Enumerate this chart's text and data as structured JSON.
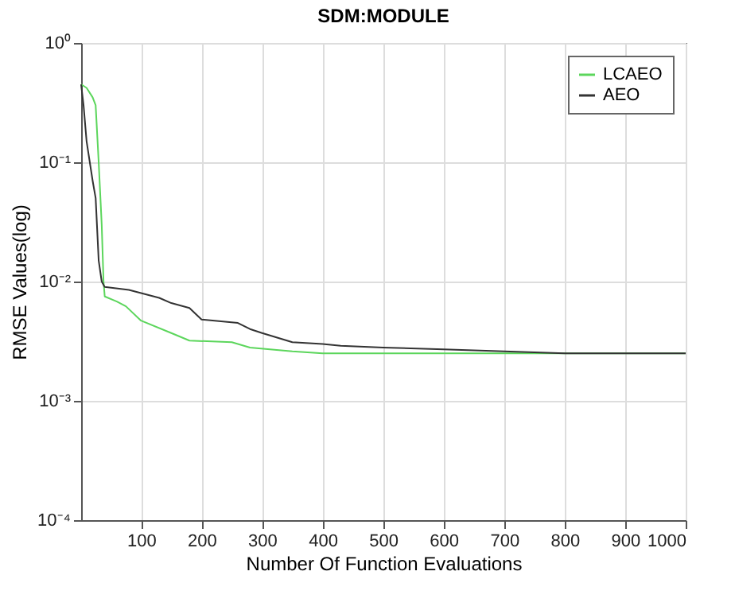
{
  "chart_data": {
    "type": "line",
    "title": "SDM:MODULE",
    "xlabel": "Number Of Function Evaluations",
    "ylabel": "RMSE Values(log)",
    "log": "y",
    "grid": true,
    "legend": "top right",
    "xlim": [
      1,
      1000
    ],
    "xticks": [
      100,
      200,
      300,
      400,
      500,
      600,
      700,
      800,
      900,
      1000
    ],
    "ylim": [
      0.0001,
      1
    ],
    "yticks": [
      {
        "value": 0.0001,
        "label": "10⁻⁴"
      },
      {
        "value": 0.001,
        "label": "10⁻³"
      },
      {
        "value": 0.01,
        "label": "10⁻²"
      },
      {
        "value": 0.1,
        "label": "10⁻¹"
      },
      {
        "value": 1,
        "label": "10⁰"
      }
    ],
    "series": [
      {
        "name": "LCAEO",
        "color": "#5cd65c",
        "x": [
          1,
          10,
          20,
          25,
          30,
          35,
          38,
          40,
          60,
          75,
          100,
          150,
          180,
          250,
          280,
          350,
          400,
          1000
        ],
        "values": [
          0.45,
          0.42,
          0.35,
          0.3,
          0.1,
          0.03,
          0.01,
          0.0075,
          0.0068,
          0.0062,
          0.0047,
          0.0037,
          0.0032,
          0.0031,
          0.0028,
          0.0026,
          0.0025,
          0.0025
        ]
      },
      {
        "name": "AEO",
        "color": "#333333",
        "x": [
          1,
          5,
          10,
          20,
          25,
          30,
          35,
          40,
          80,
          100,
          130,
          150,
          180,
          200,
          260,
          280,
          300,
          350,
          400,
          430,
          500,
          600,
          700,
          800,
          1000
        ],
        "values": [
          0.45,
          0.3,
          0.15,
          0.07,
          0.05,
          0.015,
          0.01,
          0.009,
          0.0085,
          0.008,
          0.0073,
          0.0066,
          0.006,
          0.0048,
          0.0045,
          0.004,
          0.0037,
          0.0031,
          0.003,
          0.0029,
          0.0028,
          0.0027,
          0.0026,
          0.0025,
          0.0025
        ]
      }
    ]
  }
}
